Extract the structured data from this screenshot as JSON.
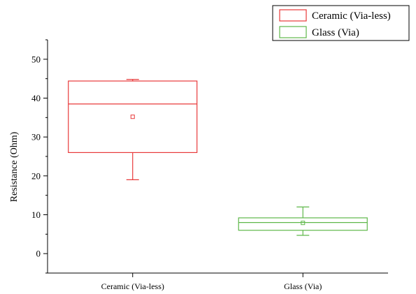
{
  "chart_data": {
    "type": "box",
    "categories": [
      "Ceramic (Via-less)",
      "Glass (Via)"
    ],
    "series": [
      {
        "name": "Ceramic (Via-less)",
        "color": "#e8393a",
        "whisker_low": 19,
        "q1": 26,
        "median": 38.5,
        "q3": 44.4,
        "whisker_high": 44.8,
        "mean": 35.2
      },
      {
        "name": "Glass (Via)",
        "color": "#5fb84a",
        "whisker_low": 4.7,
        "q1": 6,
        "median": 8,
        "q3": 9.2,
        "whisker_high": 12,
        "mean": 7.9
      }
    ],
    "xlabel": "",
    "ylabel": "Resistance (Ohm)",
    "ylim": [
      -5,
      55
    ],
    "yticks": [
      0,
      10,
      20,
      30,
      40,
      50
    ],
    "legend_position": "top-right",
    "grid": false
  }
}
